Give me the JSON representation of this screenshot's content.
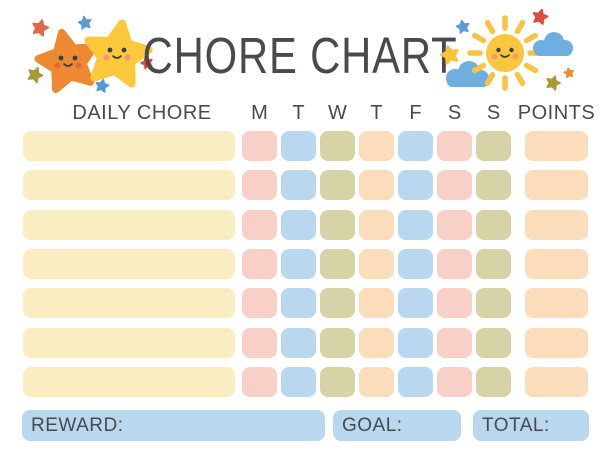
{
  "title": "CHORE CHART",
  "header": {
    "daily_chore_label": "DAILY CHORE",
    "day_labels": [
      "M",
      "T",
      "W",
      "T",
      "F",
      "S",
      "S"
    ],
    "points_label": "POINTS"
  },
  "grid": {
    "chore_cell_color": "#FBEDC2",
    "day_cell_colors": [
      "#F8D0C8",
      "#BAD7F0",
      "#D6D3A6",
      "#FBDCBB",
      "#BAD7F0",
      "#F8D0C8",
      "#D6D3A6"
    ],
    "points_cell_color": "#FBDCBB",
    "rows": [
      {
        "chore": "",
        "days": [
          "",
          "",
          "",
          "",
          "",
          "",
          ""
        ],
        "points": ""
      },
      {
        "chore": "",
        "days": [
          "",
          "",
          "",
          "",
          "",
          "",
          ""
        ],
        "points": ""
      },
      {
        "chore": "",
        "days": [
          "",
          "",
          "",
          "",
          "",
          "",
          ""
        ],
        "points": ""
      },
      {
        "chore": "",
        "days": [
          "",
          "",
          "",
          "",
          "",
          "",
          ""
        ],
        "points": ""
      },
      {
        "chore": "",
        "days": [
          "",
          "",
          "",
          "",
          "",
          "",
          ""
        ],
        "points": ""
      },
      {
        "chore": "",
        "days": [
          "",
          "",
          "",
          "",
          "",
          "",
          ""
        ],
        "points": ""
      },
      {
        "chore": "",
        "days": [
          "",
          "",
          "",
          "",
          "",
          "",
          ""
        ],
        "points": ""
      }
    ]
  },
  "footer": {
    "reward_label": "REWARD:",
    "goal_label": "GOAL:",
    "total_label": "TOTAL:",
    "box_color": "#BAD7F0"
  },
  "palette": {
    "text": "#474B4E",
    "background": "#FFFFFF",
    "orange_star": "#ED8833",
    "yellow_star": "#FCC93C",
    "sun_yellow": "#FBC53E",
    "cloud_blue": "#6FAEE0",
    "small_star_red": "#DF4B38",
    "small_star_red_orange": "#E2684A",
    "small_star_blue": "#5B9BD5",
    "small_star_olive": "#A89B35",
    "face_dark": "#3B3F42"
  }
}
